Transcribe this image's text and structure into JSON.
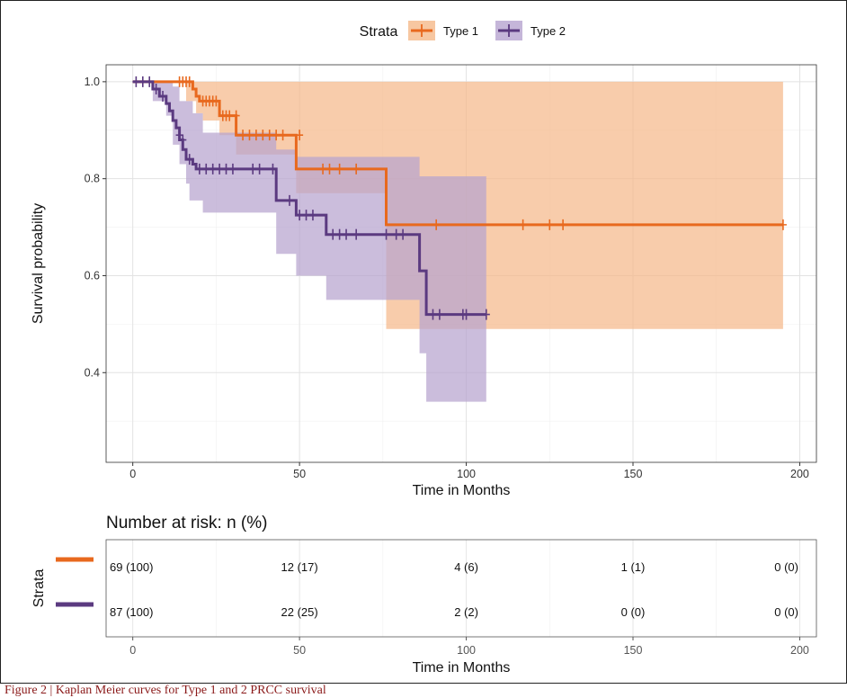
{
  "chart_data": {
    "type": "line",
    "subtype": "kaplan-meier",
    "xlabel": "Time in Months",
    "ylabel": "Survival probability",
    "xlim": [
      -8,
      205
    ],
    "ylim": [
      0.215,
      1.035
    ],
    "xticks": [
      "0",
      "50",
      "100",
      "150",
      "200"
    ],
    "yticks": [
      "0.4",
      "0.6",
      "0.8",
      "1.0"
    ],
    "grid": true,
    "legend": {
      "title": "Strata",
      "position": "top",
      "entries": [
        "Type 1",
        "Type 2"
      ]
    },
    "colors": {
      "Type 1": "#e8691e",
      "Type 2": "#5b3a80",
      "Type 1 band": "#f5b98a",
      "Type 2 band": "#b7a4cf"
    },
    "series": [
      {
        "name": "Type 1",
        "steps": [
          [
            0,
            1.0
          ],
          [
            18,
            0.985
          ],
          [
            19,
            0.97
          ],
          [
            20,
            0.96
          ],
          [
            26,
            0.93
          ],
          [
            31,
            0.89
          ],
          [
            49,
            0.82
          ],
          [
            76,
            0.705
          ],
          [
            195,
            0.705
          ]
        ],
        "ci_lower": [
          [
            0,
            1.0
          ],
          [
            10,
            1.0
          ],
          [
            16,
            0.96
          ],
          [
            19,
            0.935
          ],
          [
            21,
            0.92
          ],
          [
            26,
            0.89
          ],
          [
            31,
            0.85
          ],
          [
            49,
            0.77
          ],
          [
            76,
            0.49
          ],
          [
            195,
            0.49
          ]
        ],
        "ci_upper": [
          [
            0,
            1.0
          ],
          [
            195,
            1.0
          ]
        ],
        "censor": [
          [
            14,
            1.0
          ],
          [
            15,
            1.0
          ],
          [
            16,
            1.0
          ],
          [
            17,
            1.0
          ],
          [
            21,
            0.96
          ],
          [
            22,
            0.96
          ],
          [
            23,
            0.96
          ],
          [
            24,
            0.96
          ],
          [
            25,
            0.96
          ],
          [
            27,
            0.93
          ],
          [
            28,
            0.93
          ],
          [
            29,
            0.93
          ],
          [
            31,
            0.93
          ],
          [
            33,
            0.89
          ],
          [
            35,
            0.89
          ],
          [
            37,
            0.89
          ],
          [
            39,
            0.89
          ],
          [
            41,
            0.89
          ],
          [
            43,
            0.89
          ],
          [
            45,
            0.89
          ],
          [
            50,
            0.89
          ],
          [
            57,
            0.82
          ],
          [
            59,
            0.82
          ],
          [
            62,
            0.82
          ],
          [
            67,
            0.82
          ],
          [
            91,
            0.705
          ],
          [
            117,
            0.705
          ],
          [
            125,
            0.705
          ],
          [
            129,
            0.705
          ],
          [
            195,
            0.705
          ]
        ]
      },
      {
        "name": "Type 2",
        "steps": [
          [
            0,
            1.0
          ],
          [
            6,
            0.985
          ],
          [
            8,
            0.97
          ],
          [
            10,
            0.955
          ],
          [
            11,
            0.94
          ],
          [
            12,
            0.92
          ],
          [
            13,
            0.905
          ],
          [
            14,
            0.88
          ],
          [
            15,
            0.86
          ],
          [
            16,
            0.84
          ],
          [
            18,
            0.83
          ],
          [
            19,
            0.82
          ],
          [
            43,
            0.755
          ],
          [
            49,
            0.725
          ],
          [
            58,
            0.685
          ],
          [
            86,
            0.61
          ],
          [
            88,
            0.52
          ],
          [
            106,
            0.52
          ]
        ],
        "ci_lower": [
          [
            0,
            1.0
          ],
          [
            6,
            0.96
          ],
          [
            10,
            0.93
          ],
          [
            12,
            0.87
          ],
          [
            14,
            0.83
          ],
          [
            16,
            0.79
          ],
          [
            17,
            0.755
          ],
          [
            21,
            0.73
          ],
          [
            43,
            0.645
          ],
          [
            49,
            0.6
          ],
          [
            58,
            0.55
          ],
          [
            86,
            0.44
          ],
          [
            88,
            0.34
          ],
          [
            106,
            0.34
          ]
        ],
        "ci_upper": [
          [
            0,
            1.0
          ],
          [
            10,
            1.0
          ],
          [
            12,
            0.99
          ],
          [
            14,
            0.96
          ],
          [
            18,
            0.935
          ],
          [
            21,
            0.895
          ],
          [
            43,
            0.86
          ],
          [
            49,
            0.845
          ],
          [
            86,
            0.805
          ],
          [
            106,
            0.805
          ]
        ],
        "censor": [
          [
            1,
            1.0
          ],
          [
            3,
            1.0
          ],
          [
            5,
            1.0
          ],
          [
            7,
            0.985
          ],
          [
            9,
            0.97
          ],
          [
            14,
            0.89
          ],
          [
            15,
            0.88
          ],
          [
            17,
            0.84
          ],
          [
            20,
            0.82
          ],
          [
            22,
            0.82
          ],
          [
            24,
            0.82
          ],
          [
            26,
            0.82
          ],
          [
            28,
            0.82
          ],
          [
            30,
            0.82
          ],
          [
            36,
            0.82
          ],
          [
            38,
            0.82
          ],
          [
            42,
            0.82
          ],
          [
            47,
            0.755
          ],
          [
            50,
            0.725
          ],
          [
            52,
            0.725
          ],
          [
            54,
            0.725
          ],
          [
            60,
            0.685
          ],
          [
            62,
            0.685
          ],
          [
            64,
            0.685
          ],
          [
            67,
            0.685
          ],
          [
            76,
            0.685
          ],
          [
            79,
            0.685
          ],
          [
            81,
            0.685
          ],
          [
            90,
            0.52
          ],
          [
            92,
            0.52
          ],
          [
            99,
            0.52
          ],
          [
            100,
            0.52
          ],
          [
            106,
            0.52
          ]
        ]
      }
    ]
  },
  "risk_table": {
    "title": "Number at risk: n (%)",
    "ylabel": "Strata",
    "xlabel": "Time in Months",
    "xticks": [
      "0",
      "50",
      "100",
      "150",
      "200"
    ],
    "rows": [
      {
        "strata": "Type 1",
        "values": [
          "69 (100)",
          "12 (17)",
          "4 (6)",
          "1 (1)",
          "0 (0)"
        ]
      },
      {
        "strata": "Type 2",
        "values": [
          "87 (100)",
          "22 (25)",
          "2 (2)",
          "0 (0)",
          "0 (0)"
        ]
      }
    ]
  },
  "caption": "Figure 2 | Kaplan Meier curves for Type 1 and 2 PRCC survival"
}
